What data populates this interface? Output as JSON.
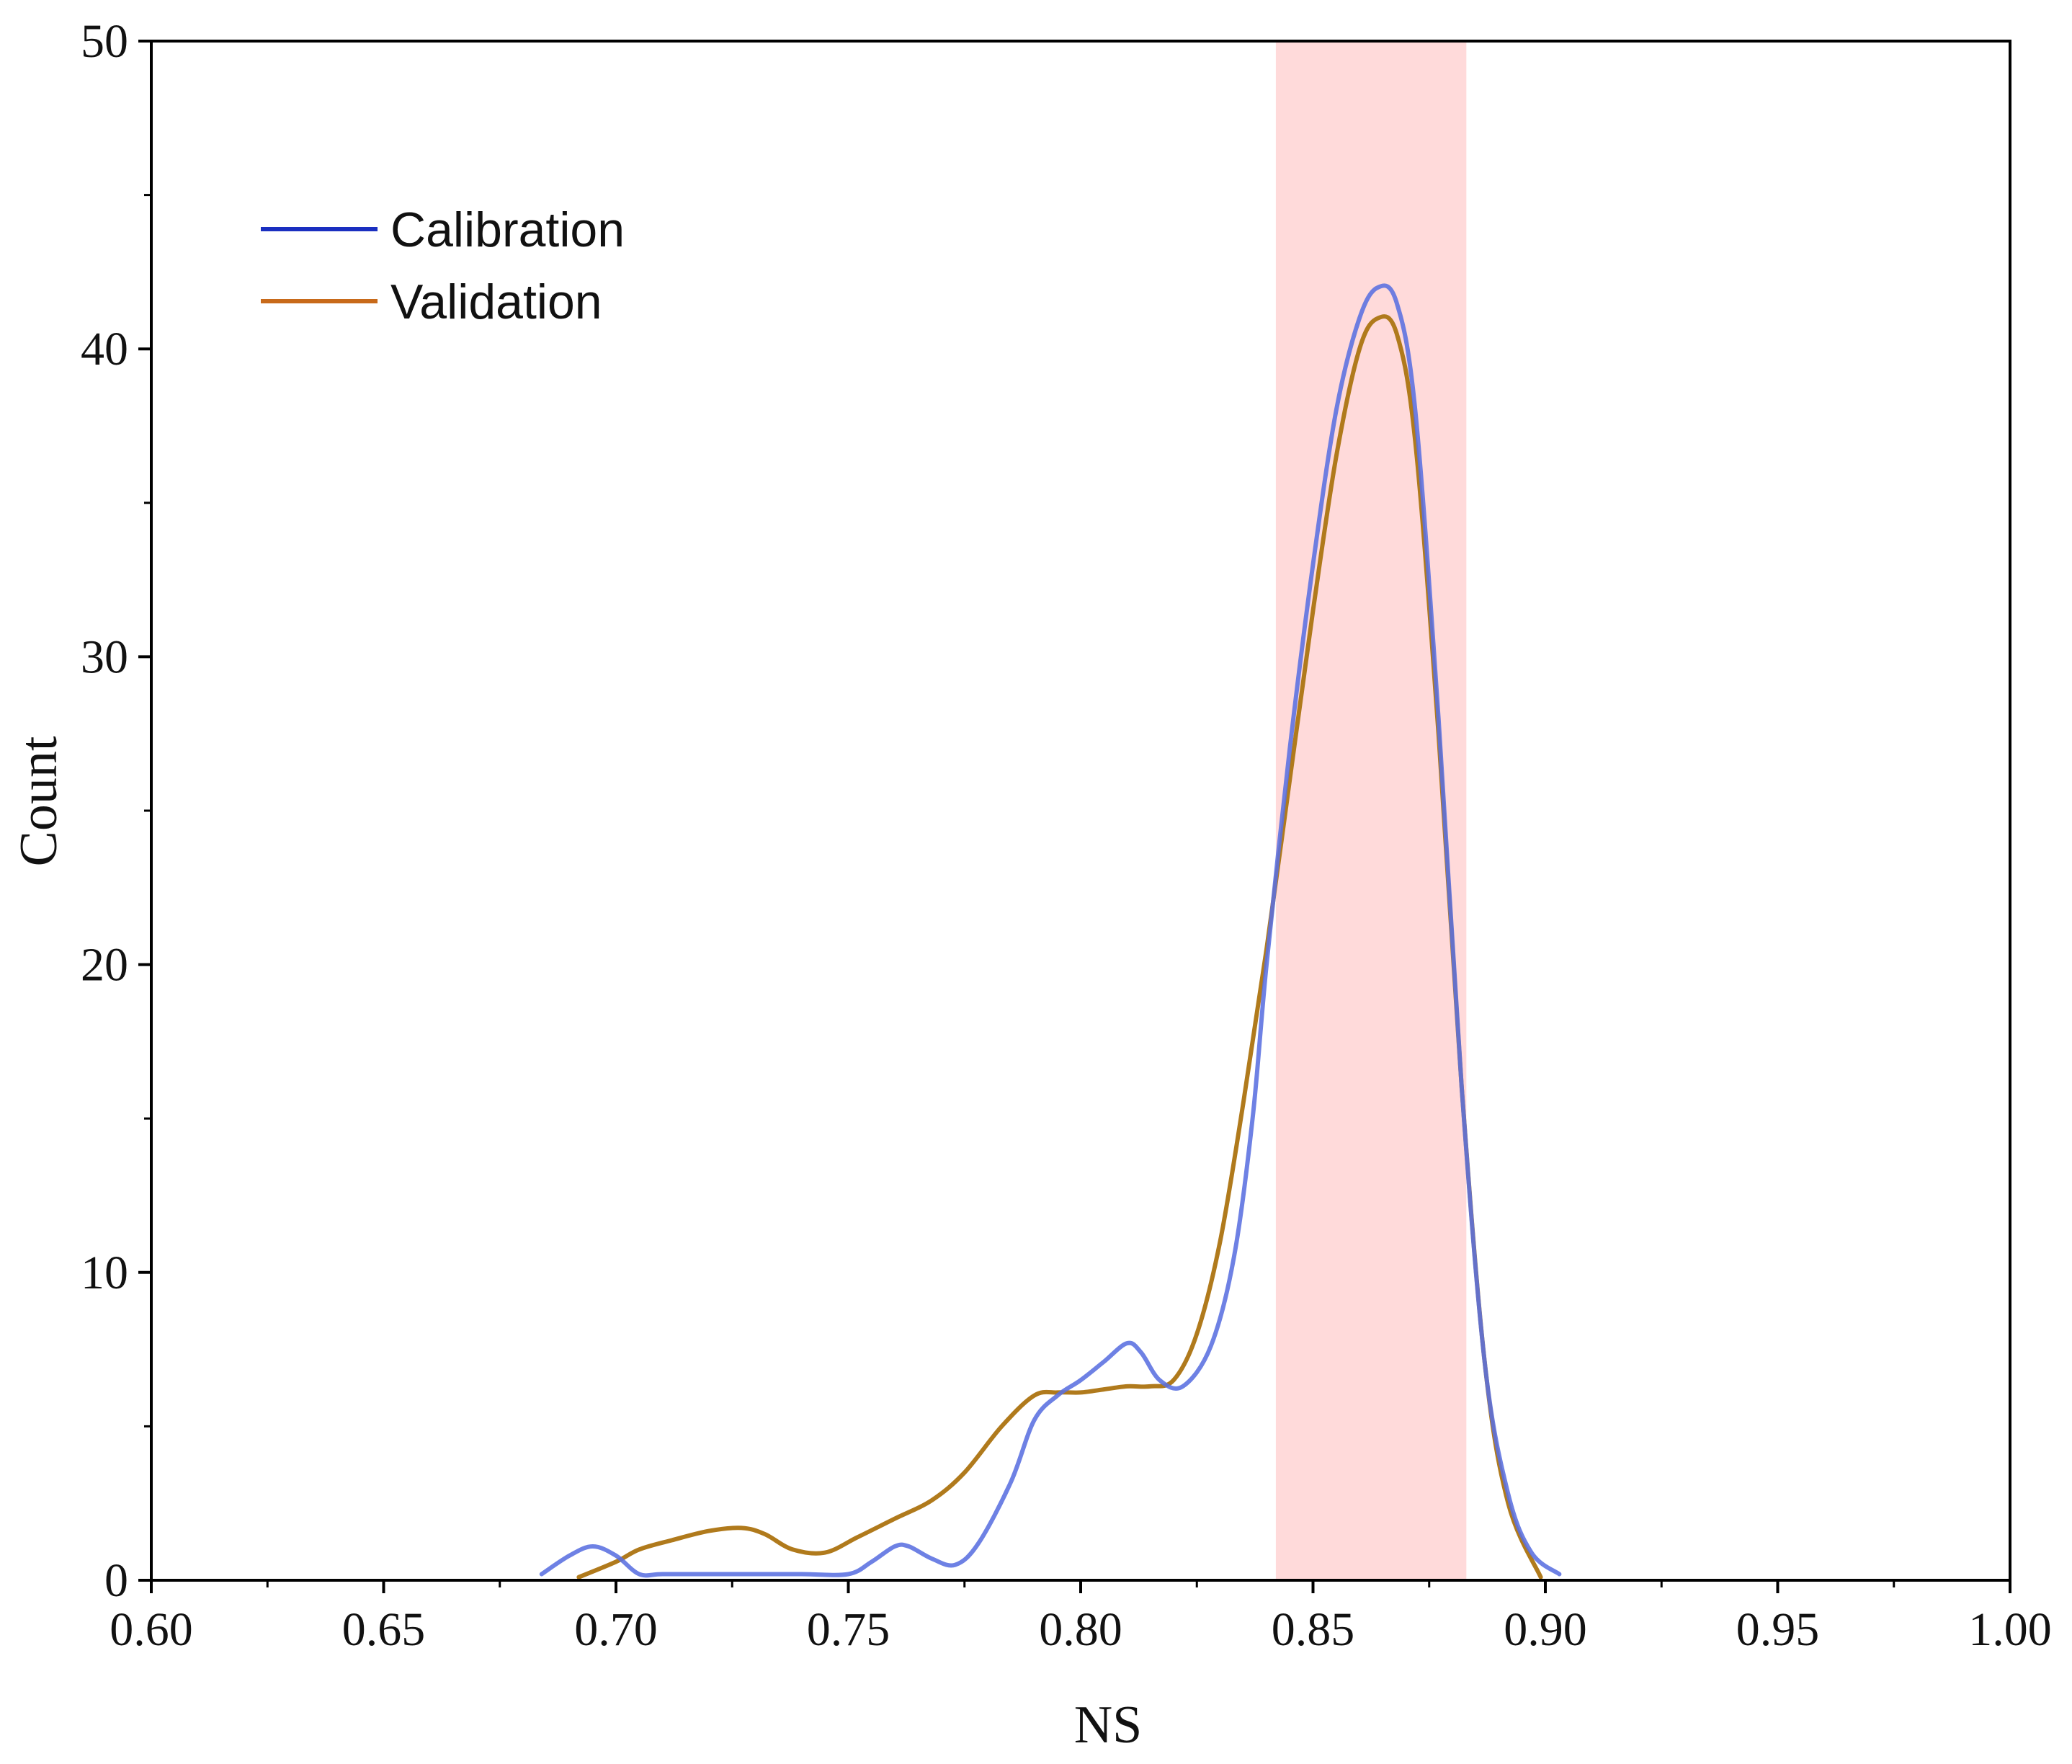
{
  "chart_data": {
    "type": "line",
    "title": "",
    "xlabel": "NS",
    "ylabel": "Count",
    "xlim": [
      0.6,
      1.0
    ],
    "ylim": [
      0,
      50
    ],
    "x_ticks": [
      "0.60",
      "0.65",
      "0.70",
      "0.75",
      "0.80",
      "0.85",
      "0.90",
      "0.95",
      "1.00"
    ],
    "y_ticks": [
      "0",
      "10",
      "20",
      "30",
      "40",
      "50"
    ],
    "grid": false,
    "legend_position": "top-left",
    "highlight_band": {
      "x_start": 0.842,
      "x_end": 0.883,
      "color": "#ffdada"
    },
    "series": [
      {
        "name": "Calibration",
        "color": "#5a6fe0",
        "legend_color": "#1a2fc0",
        "x": [
          0.684,
          0.69,
          0.695,
          0.7,
          0.705,
          0.71,
          0.72,
          0.73,
          0.74,
          0.75,
          0.755,
          0.76,
          0.763,
          0.768,
          0.773,
          0.778,
          0.785,
          0.79,
          0.795,
          0.8,
          0.805,
          0.81,
          0.813,
          0.817,
          0.822,
          0.828,
          0.833,
          0.837,
          0.84,
          0.845,
          0.85,
          0.855,
          0.86,
          0.864,
          0.868,
          0.872,
          0.877,
          0.882,
          0.887,
          0.892,
          0.897,
          0.903
        ],
        "y": [
          0.2,
          0.8,
          1.1,
          0.8,
          0.2,
          0.2,
          0.2,
          0.2,
          0.2,
          0.2,
          0.6,
          1.1,
          1.1,
          0.7,
          0.5,
          1.2,
          3.2,
          5.2,
          6.0,
          6.5,
          7.1,
          7.7,
          7.4,
          6.5,
          6.3,
          7.6,
          10.5,
          15.0,
          20.0,
          27.0,
          33.0,
          38.0,
          41.0,
          42.0,
          41.5,
          38.0,
          28.0,
          16.0,
          7.0,
          2.8,
          0.9,
          0.2
        ]
      },
      {
        "name": "Validation",
        "color": "#b07a1c",
        "legend_color": "#c86a1a",
        "x": [
          0.692,
          0.7,
          0.705,
          0.712,
          0.72,
          0.727,
          0.732,
          0.738,
          0.745,
          0.752,
          0.76,
          0.768,
          0.775,
          0.783,
          0.79,
          0.795,
          0.8,
          0.805,
          0.81,
          0.815,
          0.82,
          0.825,
          0.83,
          0.835,
          0.84,
          0.845,
          0.85,
          0.855,
          0.86,
          0.864,
          0.868,
          0.872,
          0.877,
          0.882,
          0.887,
          0.892,
          0.899
        ],
        "y": [
          0.1,
          0.6,
          1.0,
          1.3,
          1.6,
          1.7,
          1.5,
          1.0,
          0.9,
          1.4,
          2.0,
          2.6,
          3.5,
          5.0,
          6.0,
          6.1,
          6.1,
          6.2,
          6.3,
          6.3,
          6.5,
          8.0,
          11.0,
          15.5,
          20.5,
          26.0,
          31.5,
          36.5,
          40.0,
          41.0,
          40.5,
          37.0,
          27.5,
          16.0,
          7.0,
          2.5,
          0.1
        ]
      }
    ]
  }
}
